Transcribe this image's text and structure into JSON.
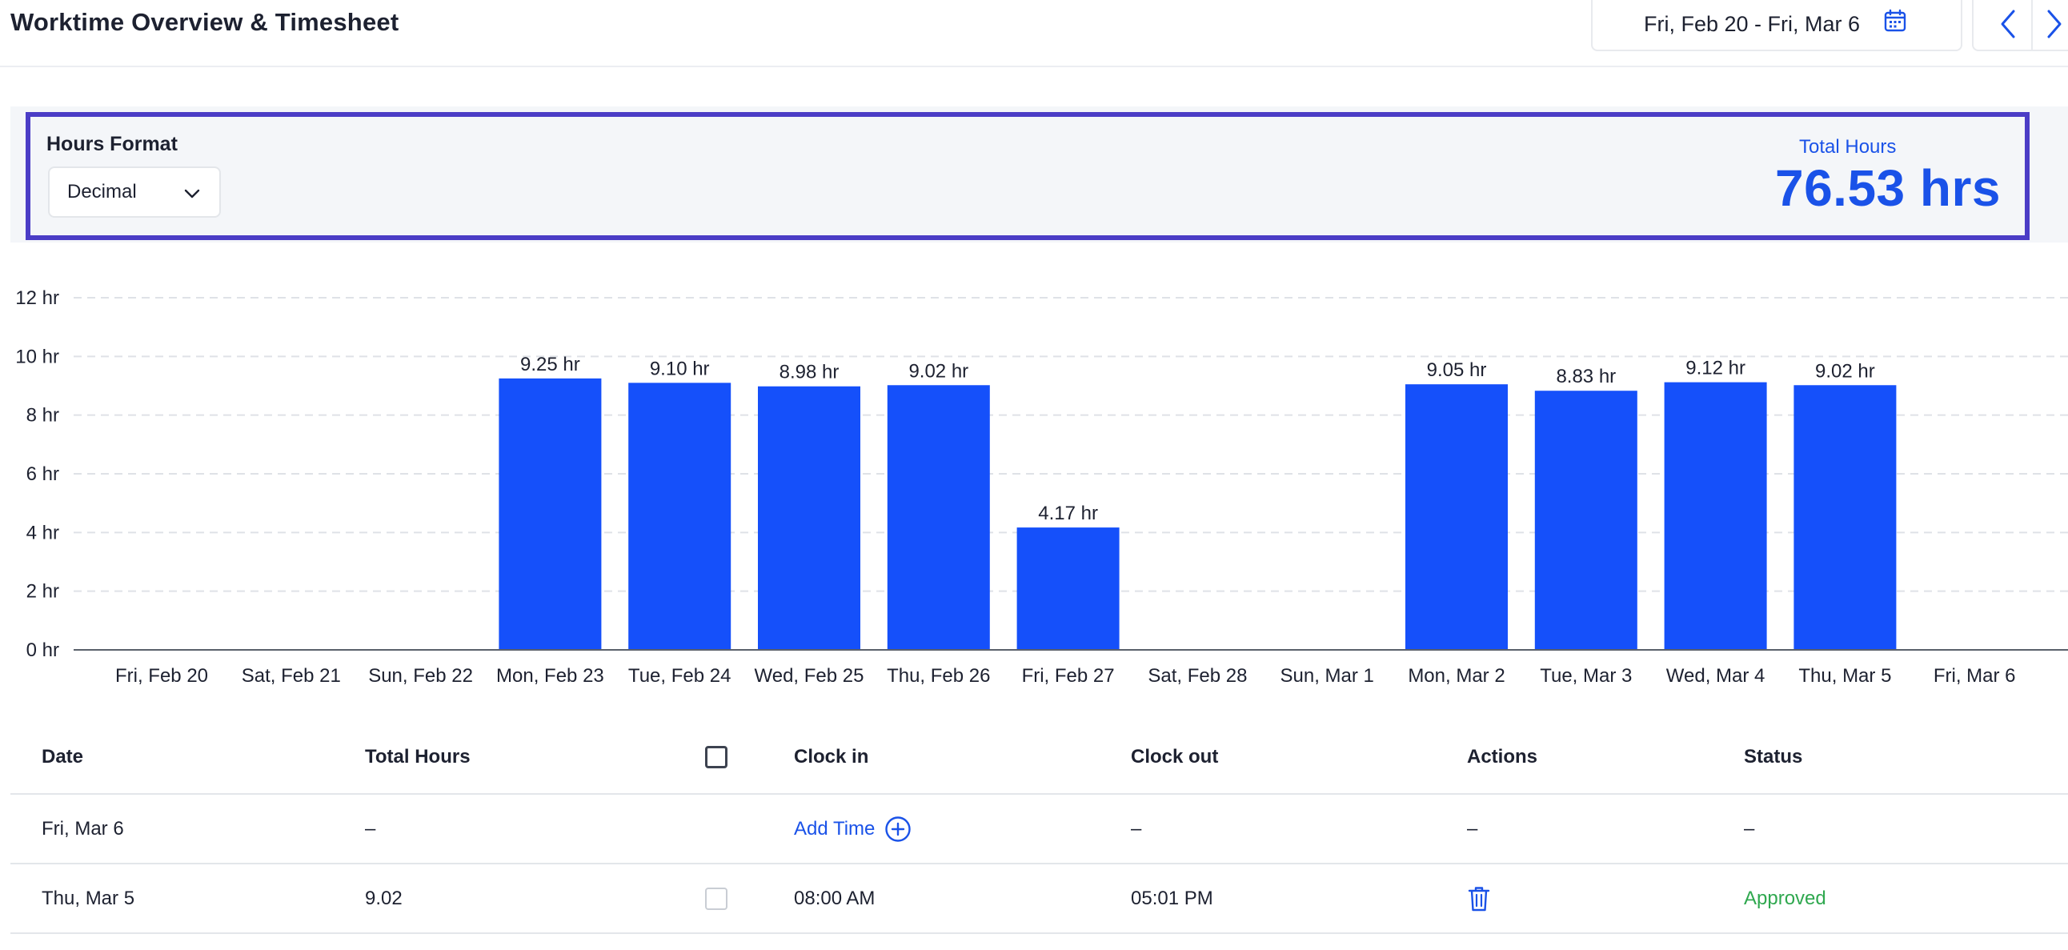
{
  "header": {
    "title": "Worktime Overview & Timesheet",
    "date_range": "Fri, Feb 20 - Fri, Mar 6",
    "icons": {
      "calendar": "calendar-icon",
      "prev": "chevron-left-icon",
      "next": "chevron-right-icon"
    }
  },
  "summary": {
    "hours_format_label": "Hours Format",
    "hours_format_value": "Decimal",
    "total_label": "Total Hours",
    "total_value": "76.53 hrs"
  },
  "colors": {
    "accent": "#1a52e8",
    "bar": "#1550fa",
    "highlight_border": "#4b3dc6",
    "approved": "#2fa84f"
  },
  "chart_data": {
    "type": "bar",
    "categories": [
      "Fri, Feb 20",
      "Sat, Feb 21",
      "Sun, Feb 22",
      "Mon, Feb 23",
      "Tue, Feb 24",
      "Wed, Feb 25",
      "Thu, Feb 26",
      "Fri, Feb 27",
      "Sat, Feb 28",
      "Sun, Mar 1",
      "Mon, Mar 2",
      "Tue, Mar 3",
      "Wed, Mar 4",
      "Thu, Mar 5",
      "Fri, Mar 6"
    ],
    "values": [
      0,
      0,
      0,
      9.25,
      9.1,
      8.98,
      9.02,
      4.17,
      0,
      0,
      9.05,
      8.83,
      9.12,
      9.02,
      0
    ],
    "data_labels": [
      "",
      "",
      "",
      "9.25 hr",
      "9.10 hr",
      "8.98 hr",
      "9.02 hr",
      "4.17 hr",
      "",
      "",
      "9.05 hr",
      "8.83 hr",
      "9.12 hr",
      "9.02 hr",
      ""
    ],
    "y_ticks": [
      0,
      2,
      4,
      6,
      8,
      10,
      12
    ],
    "y_tick_labels": [
      "0 hr",
      "2 hr",
      "4 hr",
      "6 hr",
      "8 hr",
      "10 hr",
      "12 hr"
    ],
    "ylim": [
      0,
      12
    ],
    "grid": true,
    "title": "",
    "xlabel": "",
    "ylabel": ""
  },
  "table": {
    "columns": [
      "Date",
      "Total Hours",
      "",
      "Clock in",
      "Clock out",
      "Actions",
      "Status"
    ],
    "rows": [
      {
        "date": "Fri, Mar 6",
        "total": "–",
        "clock_in": "Add Time",
        "clock_out": "–",
        "actions": "–",
        "status": "–"
      },
      {
        "date": "Thu, Mar 5",
        "total": "9.02",
        "clock_in": "08:00 AM",
        "clock_out": "05:01 PM",
        "actions": "trash-icon",
        "status": "Approved"
      }
    ]
  }
}
